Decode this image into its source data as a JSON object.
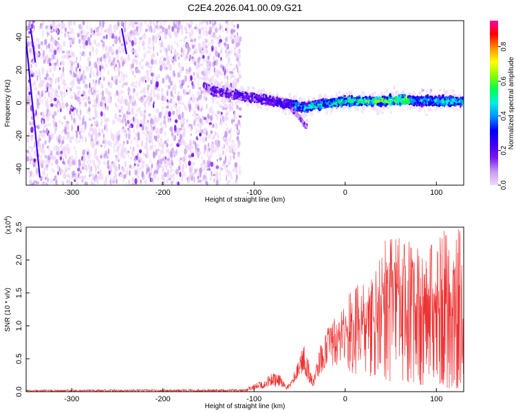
{
  "title": "C2E4.2026.041.00.09.G21",
  "chart_data": [
    {
      "type": "heatmap",
      "xlabel": "Height of straight line (km)",
      "ylabel": "Frequency (Hz)",
      "xlim": [
        -350,
        130
      ],
      "ylim": [
        -50,
        50
      ],
      "xticks": [
        -300,
        -200,
        -100,
        0,
        100
      ],
      "xtick_labels": [
        "-300",
        "-200",
        "-100",
        "0",
        "100"
      ],
      "yticks": [
        -40,
        -20,
        0,
        20,
        40
      ],
      "ytick_labels": [
        "-40",
        "-20",
        "0",
        "20",
        "40"
      ],
      "noise_region_km": [
        -350,
        -120
      ],
      "ridge": {
        "height_km": [
          -155,
          -140,
          -120,
          -100,
          -80,
          -60,
          -45,
          -30,
          -15,
          0,
          20,
          40,
          60,
          80,
          100,
          130
        ],
        "frequency_hz": [
          10,
          7,
          5,
          3,
          1,
          -1,
          -3,
          -1,
          0,
          1,
          1,
          1,
          2,
          1,
          1,
          1
        ]
      },
      "branch": {
        "height_km": [
          -60,
          -50,
          -42
        ],
        "frequency_hz": [
          -3,
          -9,
          -15
        ]
      },
      "colorbar": {
        "label": "Normalized spectral amplitude",
        "range": [
          0,
          0.95
        ],
        "ticks": [
          0,
          0.2,
          0.4,
          0.6,
          0.8
        ],
        "tick_labels": [
          "0.0",
          "0.2",
          "0.4",
          "0.6",
          "0.8"
        ],
        "colors": [
          "#f0d8fb",
          "#c39af0",
          "#7a16ee",
          "#3c00f0",
          "#0000ff",
          "#0090ff",
          "#00f0e0",
          "#00ff50",
          "#8aff00",
          "#ffff00",
          "#ff9000",
          "#ff0000",
          "#ff00a0"
        ]
      }
    },
    {
      "type": "line",
      "xlabel": "Height of straight line (km)",
      "ylabel": "SNR (10 * v/v)",
      "scale_label": "(x10",
      "scale_exponent": "4",
      "scale_close": ")",
      "xlim": [
        -350,
        130
      ],
      "ylim": [
        0,
        2.5
      ],
      "xticks": [
        -300,
        -200,
        -100,
        0,
        100
      ],
      "xtick_labels": [
        "-300",
        "-200",
        "-100",
        "0",
        "100"
      ],
      "yticks": [
        0,
        0.5,
        1.0,
        1.5,
        2.0,
        2.5
      ],
      "ytick_labels": [
        "0.0",
        "0.5",
        "1.0",
        "1.5",
        "2.0",
        "2.5"
      ],
      "line_color": "#ee3333",
      "envelope": {
        "height_km": [
          -350,
          -110,
          -100,
          -90,
          -80,
          -70,
          -65,
          -60,
          -55,
          -50,
          -45,
          -40,
          -35,
          -30,
          -20,
          -10,
          0,
          10,
          20,
          30,
          40,
          50,
          60,
          70,
          80,
          90,
          100,
          110,
          120,
          130
        ],
        "low": [
          0.0,
          0.0,
          0.03,
          0.05,
          0.08,
          0.05,
          0.03,
          0.06,
          0.15,
          0.25,
          0.3,
          0.12,
          0.08,
          0.2,
          0.4,
          0.4,
          0.35,
          0.25,
          0.3,
          0.2,
          0.2,
          0.15,
          0.15,
          0.1,
          0.1,
          0.1,
          0.1,
          0.05,
          0.05,
          0.05
        ],
        "high": [
          0.03,
          0.04,
          0.12,
          0.18,
          0.3,
          0.25,
          0.08,
          0.15,
          0.35,
          0.55,
          0.75,
          0.45,
          0.2,
          0.6,
          0.95,
          1.25,
          1.45,
          1.6,
          1.65,
          1.75,
          2.2,
          2.5,
          2.4,
          2.3,
          2.3,
          2.2,
          2.3,
          2.5,
          2.5,
          2.5
        ]
      }
    }
  ]
}
